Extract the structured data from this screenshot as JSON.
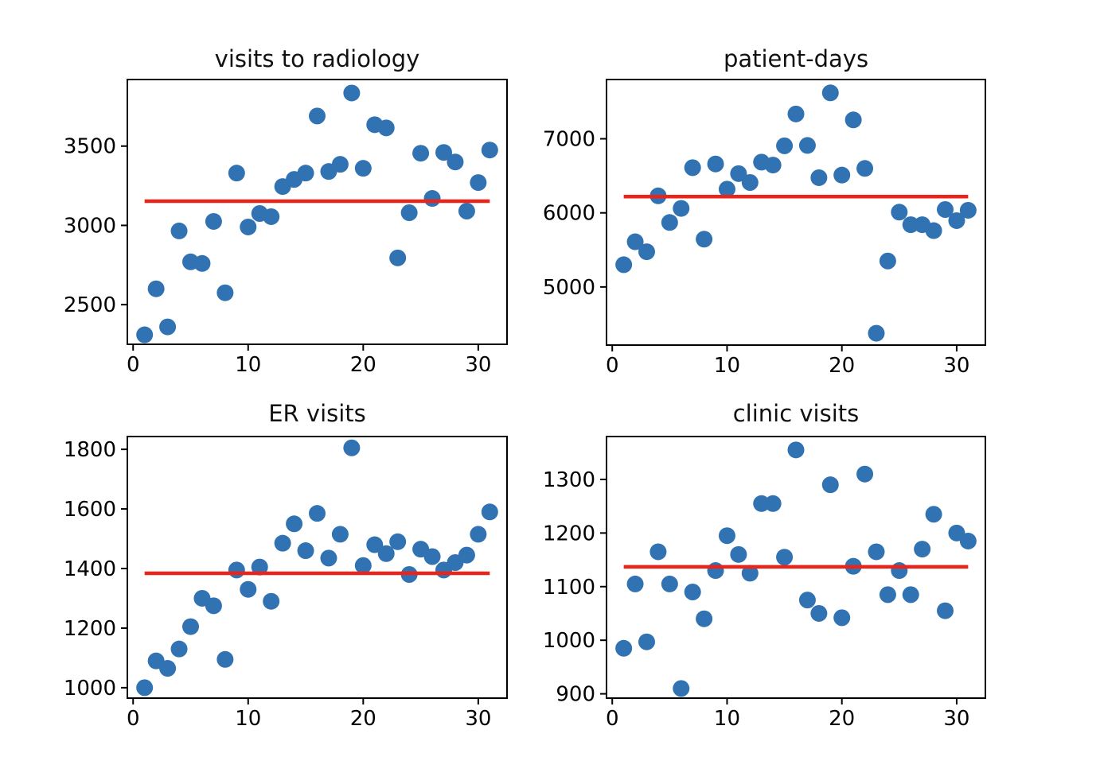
{
  "figure": {
    "background": "#ffffff",
    "layout": "2x2 grid of scatter plots with mean reference lines",
    "rows": 2,
    "cols": 2
  },
  "colors": {
    "marker": "#3172b2",
    "mean_line": "#eb2319",
    "axis": "#000000",
    "tick_text": "#000000",
    "title_text": "#111111"
  },
  "chart_data": [
    {
      "type": "scatter",
      "title": "visits to radiology",
      "xlabel": "",
      "ylabel": "",
      "x": [
        1,
        2,
        3,
        4,
        5,
        6,
        7,
        8,
        9,
        10,
        11,
        12,
        13,
        14,
        15,
        16,
        17,
        18,
        19,
        20,
        21,
        22,
        23,
        24,
        25,
        26,
        27,
        28,
        29,
        30,
        31
      ],
      "values": [
        2310,
        2600,
        2360,
        2965,
        2770,
        2760,
        3025,
        2575,
        3330,
        2990,
        3075,
        3055,
        3245,
        3290,
        3330,
        3690,
        3340,
        3385,
        3835,
        3360,
        3635,
        3615,
        2795,
        3080,
        3455,
        3170,
        3460,
        3400,
        3090,
        3270,
        3475
      ],
      "mean_line": 3153,
      "xlim": [
        -0.5,
        32.5
      ],
      "ylim": [
        2250,
        3920
      ],
      "xticks": [
        0,
        10,
        20,
        30
      ],
      "yticks": [
        2500,
        3000,
        3500
      ],
      "grid": false,
      "legend": null
    },
    {
      "type": "scatter",
      "title": "patient-days",
      "xlabel": "",
      "ylabel": "",
      "x": [
        1,
        2,
        3,
        4,
        5,
        6,
        7,
        8,
        9,
        10,
        11,
        12,
        13,
        14,
        15,
        16,
        17,
        18,
        19,
        20,
        21,
        22,
        23,
        24,
        25,
        26,
        27,
        28,
        29,
        30,
        31
      ],
      "values": [
        5300,
        5610,
        5475,
        6230,
        5870,
        6060,
        6610,
        5645,
        6660,
        6320,
        6530,
        6410,
        6685,
        6645,
        6905,
        7335,
        6910,
        6475,
        7620,
        6510,
        7255,
        6600,
        4375,
        5350,
        6010,
        5840,
        5840,
        5760,
        6045,
        5895,
        6035
      ],
      "mean_line": 6220,
      "xlim": [
        -0.5,
        32.5
      ],
      "ylim": [
        4215,
        7800
      ],
      "xticks": [
        0,
        10,
        20,
        30
      ],
      "yticks": [
        5000,
        6000,
        7000
      ],
      "grid": false,
      "legend": null
    },
    {
      "type": "scatter",
      "title": "ER visits",
      "xlabel": "",
      "ylabel": "",
      "x": [
        1,
        2,
        3,
        4,
        5,
        6,
        7,
        8,
        9,
        10,
        11,
        12,
        13,
        14,
        15,
        16,
        17,
        18,
        19,
        20,
        21,
        22,
        23,
        24,
        25,
        26,
        27,
        28,
        29,
        30,
        31
      ],
      "values": [
        1000,
        1090,
        1065,
        1130,
        1205,
        1300,
        1275,
        1095,
        1395,
        1330,
        1405,
        1290,
        1485,
        1550,
        1460,
        1585,
        1435,
        1515,
        1805,
        1410,
        1480,
        1450,
        1490,
        1380,
        1465,
        1440,
        1395,
        1420,
        1445,
        1515,
        1590
      ],
      "mean_line": 1384,
      "xlim": [
        -0.5,
        32.5
      ],
      "ylim": [
        965,
        1843
      ],
      "xticks": [
        0,
        10,
        20,
        30
      ],
      "yticks": [
        1000,
        1200,
        1400,
        1600,
        1800
      ],
      "grid": false,
      "legend": null
    },
    {
      "type": "scatter",
      "title": "clinic visits",
      "xlabel": "",
      "ylabel": "",
      "x": [
        1,
        2,
        3,
        4,
        5,
        6,
        7,
        8,
        9,
        10,
        11,
        12,
        13,
        14,
        15,
        16,
        17,
        18,
        19,
        20,
        21,
        22,
        23,
        24,
        25,
        26,
        27,
        28,
        29,
        30,
        31
      ],
      "values": [
        985,
        1105,
        997,
        1165,
        1105,
        910,
        1090,
        1040,
        1130,
        1195,
        1160,
        1125,
        1255,
        1255,
        1155,
        1355,
        1075,
        1050,
        1290,
        1042,
        1138,
        1310,
        1165,
        1085,
        1130,
        1085,
        1170,
        1235,
        1055,
        1200,
        1185
      ],
      "mean_line": 1137,
      "xlim": [
        -0.5,
        32.5
      ],
      "ylim": [
        892,
        1380
      ],
      "xticks": [
        0,
        10,
        20,
        30
      ],
      "yticks": [
        900,
        1000,
        1100,
        1200,
        1300
      ],
      "grid": false,
      "legend": null
    }
  ]
}
